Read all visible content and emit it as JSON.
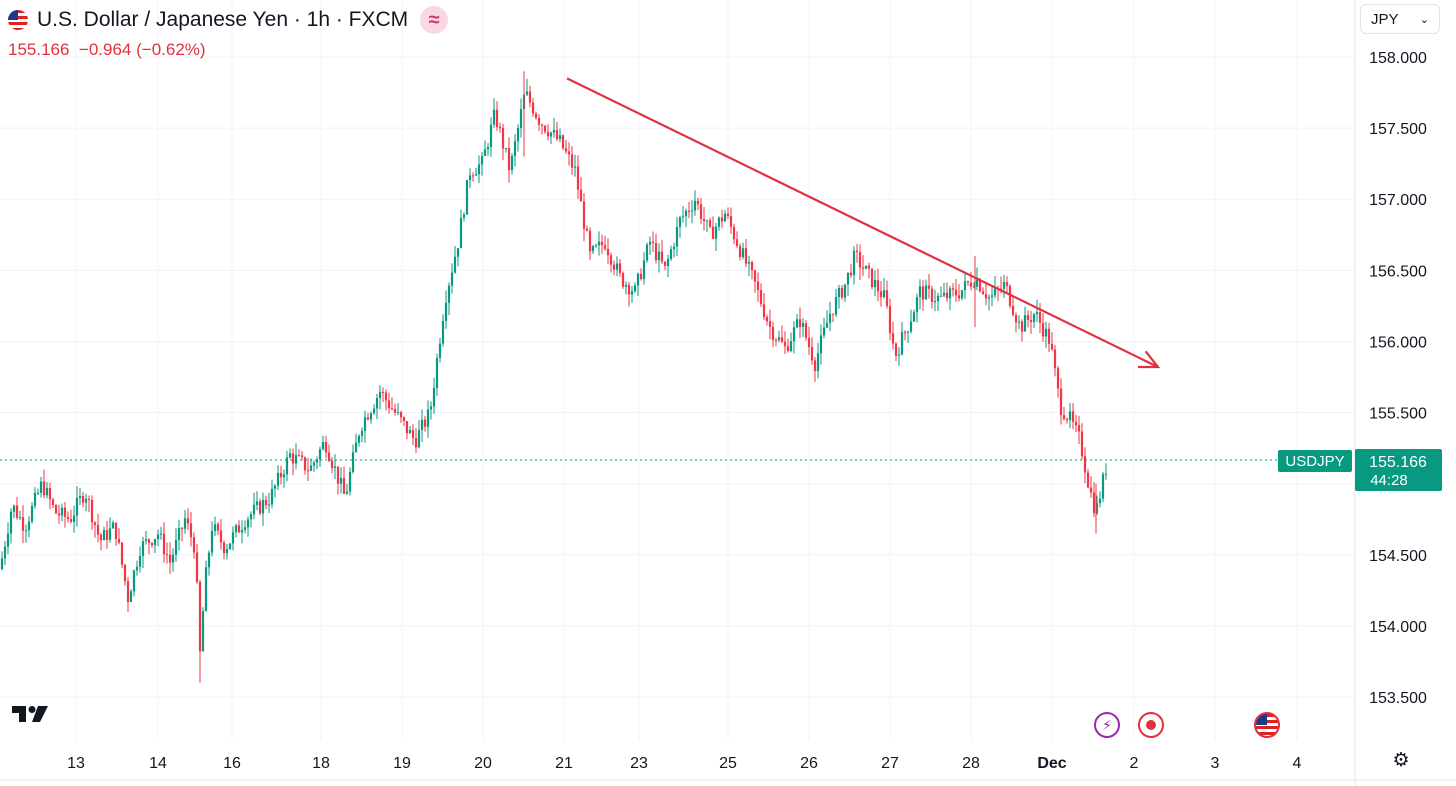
{
  "header": {
    "title": "U.S. Dollar / Japanese Yen · 1h · FXCM",
    "badge_icon": "wave-icon",
    "quote": {
      "last": "155.166",
      "change": "−0.964",
      "change_pct": "(−0.62%)",
      "color": "#e0313f"
    }
  },
  "currency_select": {
    "value": "JPY"
  },
  "price_label": {
    "symbol": "USDJPY",
    "price": "155.166",
    "countdown": "44:28",
    "color": "#089981"
  },
  "colors": {
    "up": "#089981",
    "down": "#f23645",
    "trend": "#e0313f",
    "grid": "#f0f3fa"
  },
  "events": [
    "lightning-icon",
    "record-icon",
    "us-flag-icon"
  ],
  "chart_data": {
    "type": "candlestick",
    "title": "U.S. Dollar / Japanese Yen · 1h · FXCM",
    "ylim": [
      153.25,
      158.22
    ],
    "y_ticks": [
      "158.000",
      "157.500",
      "157.000",
      "156.500",
      "156.000",
      "155.500",
      "155.000",
      "154.500",
      "154.000",
      "153.500"
    ],
    "x_tick_labels": [
      "13",
      "14",
      "16",
      "18",
      "19",
      "20",
      "21",
      "23",
      "25",
      "26",
      "27",
      "28",
      "Dec",
      "2",
      "3",
      "4"
    ],
    "grid": true,
    "last_price": 155.166,
    "price_path": [
      [
        0,
        154.4
      ],
      [
        12,
        154.85
      ],
      [
        25,
        154.7
      ],
      [
        42,
        155.0
      ],
      [
        55,
        154.8
      ],
      [
        70,
        154.75
      ],
      [
        85,
        154.95
      ],
      [
        100,
        154.6
      ],
      [
        115,
        154.7
      ],
      [
        128,
        154.2
      ],
      [
        140,
        154.55
      ],
      [
        158,
        154.65
      ],
      [
        170,
        154.45
      ],
      [
        185,
        154.75
      ],
      [
        195,
        154.55
      ],
      [
        200,
        153.8
      ],
      [
        205,
        154.3
      ],
      [
        212,
        154.7
      ],
      [
        225,
        154.55
      ],
      [
        245,
        154.75
      ],
      [
        270,
        154.9
      ],
      [
        290,
        155.2
      ],
      [
        310,
        155.1
      ],
      [
        325,
        155.3
      ],
      [
        345,
        154.9
      ],
      [
        360,
        155.4
      ],
      [
        380,
        155.65
      ],
      [
        400,
        155.45
      ],
      [
        415,
        155.3
      ],
      [
        430,
        155.5
      ],
      [
        445,
        156.3
      ],
      [
        458,
        156.7
      ],
      [
        470,
        157.2
      ],
      [
        482,
        157.25
      ],
      [
        495,
        157.6
      ],
      [
        510,
        157.2
      ],
      [
        525,
        157.75
      ],
      [
        540,
        157.55
      ],
      [
        560,
        157.4
      ],
      [
        575,
        157.2
      ],
      [
        590,
        156.6
      ],
      [
        605,
        156.7
      ],
      [
        620,
        156.45
      ],
      [
        635,
        156.35
      ],
      [
        650,
        156.7
      ],
      [
        665,
        156.5
      ],
      [
        680,
        156.85
      ],
      [
        695,
        157.0
      ],
      [
        710,
        156.75
      ],
      [
        725,
        156.9
      ],
      [
        740,
        156.65
      ],
      [
        755,
        156.4
      ],
      [
        770,
        156.1
      ],
      [
        785,
        155.95
      ],
      [
        800,
        156.15
      ],
      [
        815,
        155.85
      ],
      [
        830,
        156.2
      ],
      [
        845,
        156.4
      ],
      [
        855,
        156.6
      ],
      [
        870,
        156.45
      ],
      [
        885,
        156.3
      ],
      [
        895,
        155.9
      ],
      [
        910,
        156.15
      ],
      [
        920,
        156.35
      ],
      [
        940,
        156.3
      ],
      [
        960,
        156.35
      ],
      [
        975,
        156.45
      ],
      [
        990,
        156.3
      ],
      [
        1005,
        156.4
      ],
      [
        1020,
        156.1
      ],
      [
        1035,
        156.2
      ],
      [
        1050,
        156.0
      ],
      [
        1060,
        155.55
      ],
      [
        1070,
        155.45
      ],
      [
        1080,
        155.3
      ],
      [
        1090,
        154.95
      ],
      [
        1096,
        154.8
      ],
      [
        1108,
        155.17
      ]
    ],
    "trendline": {
      "from": [
        156.95,
        157.85
      ],
      "to": [
        156.92,
        155.82
      ]
    }
  }
}
